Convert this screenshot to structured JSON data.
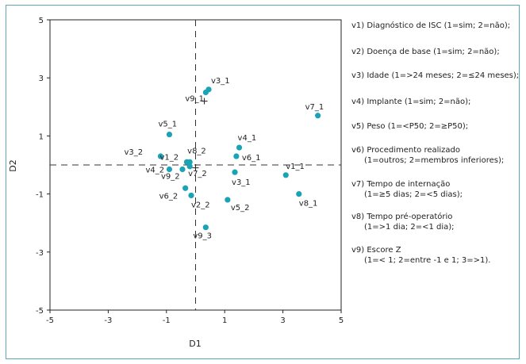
{
  "chart_data": {
    "type": "scatter",
    "xlabel": "D1",
    "ylabel": "D2",
    "xlim": [
      -5,
      5
    ],
    "ylim": [
      -5,
      5
    ],
    "xticks": [
      "-5",
      "-3",
      "-1",
      "1",
      "3",
      "5"
    ],
    "yticks": [
      "5",
      "3",
      "1",
      "-1",
      "-3",
      "-5"
    ],
    "grid": false,
    "reference_lines": {
      "x": 0,
      "y": 0,
      "style": "dashed"
    },
    "marker_color": "#1aa3b5",
    "points": [
      {
        "label": "v1_1",
        "x": 3.1,
        "y": -0.35
      },
      {
        "label": "v1_2",
        "x": -0.3,
        "y": 0.1
      },
      {
        "label": "v2_2",
        "x": -0.15,
        "y": -1.05
      },
      {
        "label": "v3_1",
        "x": 1.35,
        "y": -0.25
      },
      {
        "label": "v3_1",
        "x": 0.45,
        "y": 2.6
      },
      {
        "label": "v3_2",
        "x": -1.2,
        "y": 0.3
      },
      {
        "label": "v4_1",
        "x": 1.5,
        "y": 0.6
      },
      {
        "label": "v4_2",
        "x": -0.9,
        "y": -0.15
      },
      {
        "label": "v5_1",
        "x": -0.9,
        "y": 1.05
      },
      {
        "label": "v5_2",
        "x": 1.1,
        "y": -1.2
      },
      {
        "label": "v6_1",
        "x": 1.4,
        "y": 0.3
      },
      {
        "label": "v6_2",
        "x": -0.35,
        "y": -0.8
      },
      {
        "label": "v7_1",
        "x": 4.2,
        "y": 1.7
      },
      {
        "label": "v7_2",
        "x": -0.2,
        "y": -0.05
      },
      {
        "label": "v8_1",
        "x": 3.55,
        "y": -1.0
      },
      {
        "label": "v8_2",
        "x": -0.2,
        "y": 0.1
      },
      {
        "label": "v9_1",
        "x": 0.35,
        "y": 2.5
      },
      {
        "label": "v9_2",
        "x": -0.45,
        "y": -0.15
      },
      {
        "label": "v9_3",
        "x": 0.35,
        "y": -2.15
      }
    ],
    "plus_markers": [
      {
        "x": 0.3,
        "y": 2.2
      },
      {
        "x": 0.0,
        "y": -0.1
      }
    ]
  },
  "legend": [
    {
      "main": "v1) Diagnóstico de ISC (1=sim; 2=não);"
    },
    {
      "main": "v2) Doença de base (1=sim; 2=não);"
    },
    {
      "main": "v3) Idade (1=>24 meses; 2=≤24 meses);"
    },
    {
      "main": "v4) Implante (1=sim; 2=não);"
    },
    {
      "main": "v5) Peso (1=<P50; 2=≥P50);"
    },
    {
      "main": "v6) Procedimento realizado",
      "sub": "(1=outros; 2=membros inferiores);"
    },
    {
      "main": "v7) Tempo de internação",
      "sub": "(1=≥5 dias; 2=<5 dias);"
    },
    {
      "main": "v8) Tempo pré-operatório",
      "sub": "(1=>1 dia; 2=<1 dia);"
    },
    {
      "main": "v9) Escore Z",
      "sub": "(1=< 1; 2=entre -1 e 1; 3=>1)."
    }
  ]
}
